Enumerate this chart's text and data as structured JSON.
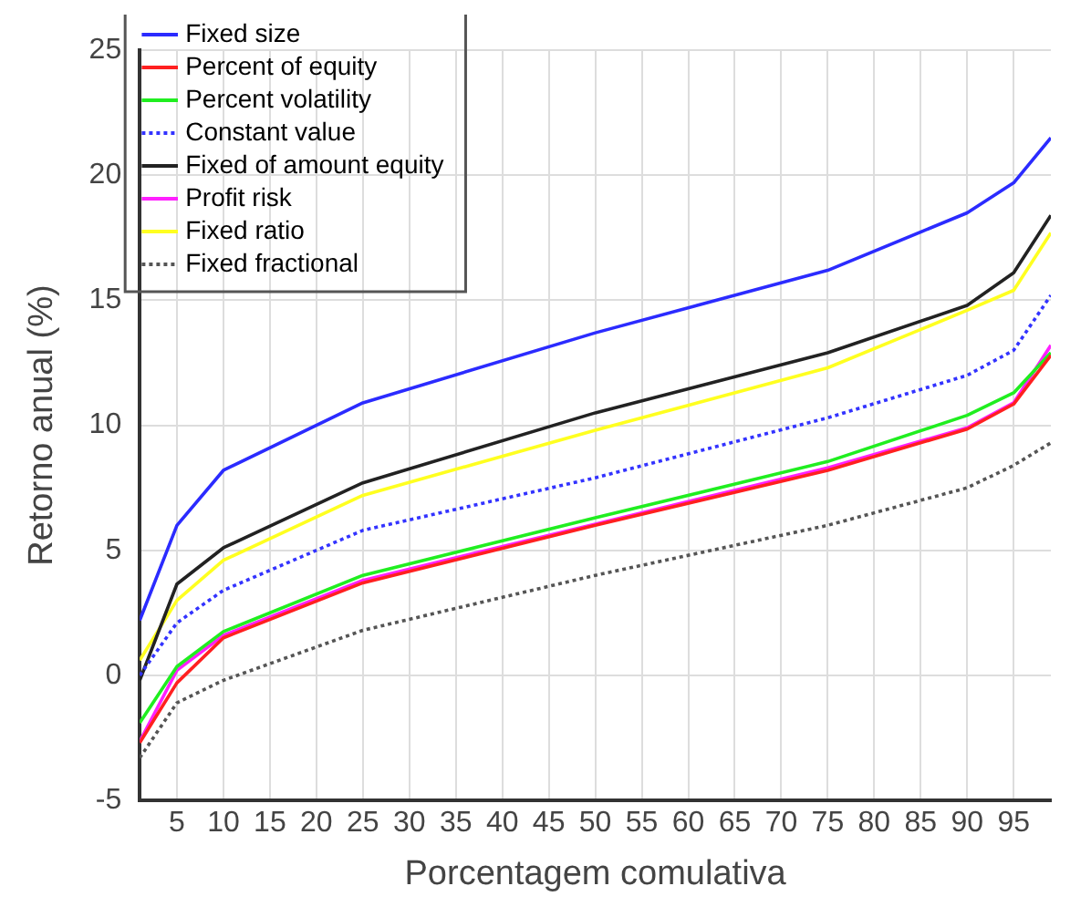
{
  "chart_data": {
    "type": "line",
    "xlabel": "Porcentagem comulativa",
    "ylabel": "Retorno anual (%)",
    "x": [
      1,
      5,
      10,
      25,
      50,
      75,
      90,
      95,
      99
    ],
    "xlim": [
      1,
      99
    ],
    "xticks": [
      5,
      10,
      15,
      20,
      25,
      30,
      35,
      40,
      45,
      50,
      55,
      60,
      65,
      70,
      75,
      80,
      85,
      90,
      95
    ],
    "ylim": [
      -5,
      25
    ],
    "yticks": [
      -5,
      0,
      5,
      10,
      15,
      20,
      25
    ],
    "grid": true,
    "legend": "top left",
    "marker": "none",
    "series": [
      {
        "name": "Fixed size",
        "color": "#2b2bff",
        "line_style": "solid",
        "values": [
          2.2,
          6.0,
          8.2,
          10.9,
          13.7,
          16.2,
          18.5,
          19.7,
          21.5
        ]
      },
      {
        "name": "Percent of equity",
        "color": "#ff2020",
        "line_style": "solid",
        "values": [
          -2.7,
          -0.3,
          1.5,
          3.7,
          6.0,
          8.2,
          9.85,
          10.85,
          12.8
        ]
      },
      {
        "name": "Percent volatility",
        "color": "#20ee20",
        "line_style": "solid",
        "values": [
          -1.9,
          0.35,
          1.75,
          4.0,
          6.3,
          8.55,
          10.4,
          11.3,
          12.9
        ]
      },
      {
        "name": "Constant value",
        "color": "#3333ff",
        "line_style": "dotted",
        "values": [
          0,
          2.1,
          3.4,
          5.8,
          7.9,
          10.3,
          12.0,
          13.0,
          15.2
        ]
      },
      {
        "name": "Fixed of amount equity",
        "color": "#222222",
        "line_style": "solid",
        "values": [
          -0.2,
          3.65,
          5.1,
          7.7,
          10.5,
          12.9,
          14.8,
          16.1,
          18.4
        ]
      },
      {
        "name": "Profit risk",
        "color": "#ff20ff",
        "line_style": "solid",
        "values": [
          -2.65,
          0.2,
          1.6,
          3.8,
          6.05,
          8.3,
          9.9,
          10.9,
          13.2
        ]
      },
      {
        "name": "Fixed ratio",
        "color": "#ffff20",
        "line_style": "solid",
        "values": [
          0.6,
          3.0,
          4.6,
          7.2,
          9.8,
          12.3,
          14.6,
          15.4,
          17.7
        ]
      },
      {
        "name": "Fixed fractional",
        "color": "#555555",
        "line_style": "dotted",
        "values": [
          -3.3,
          -1.1,
          -0.2,
          1.8,
          4.0,
          6.0,
          7.5,
          8.4,
          9.3
        ]
      }
    ]
  }
}
